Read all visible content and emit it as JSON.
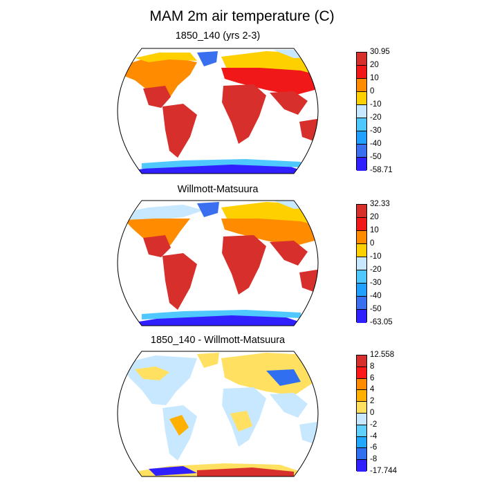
{
  "title": "MAM 2m air temperature (C)",
  "panels": [
    {
      "title": "1850_140 (yrs 2-3)",
      "colorbar": {
        "labels": [
          "30.95",
          "20",
          "10",
          "0",
          "-10",
          "-20",
          "-30",
          "-40",
          "-50",
          "-58.71"
        ],
        "colors": [
          "#d7302c",
          "#f01818",
          "#ff8c00",
          "#ffd000",
          "#c8e8ff",
          "#4fc8ff",
          "#20a0ff",
          "#3a70f0",
          "#3020ff"
        ]
      }
    },
    {
      "title": "Willmott-Matsuura",
      "colorbar": {
        "labels": [
          "32.33",
          "20",
          "10",
          "0",
          "-10",
          "-20",
          "-30",
          "-40",
          "-50",
          "-63.05"
        ],
        "colors": [
          "#d7302c",
          "#f01818",
          "#ff8c00",
          "#ffd000",
          "#c8e8ff",
          "#4fc8ff",
          "#20a0ff",
          "#3a70f0",
          "#3020ff"
        ]
      }
    },
    {
      "title": "1850_140 - Willmott-Matsuura",
      "colorbar": {
        "labels": [
          "12.558",
          "8",
          "6",
          "4",
          "2",
          "0",
          "-2",
          "-4",
          "-6",
          "-8",
          "-17.744"
        ],
        "colors": [
          "#d7302c",
          "#ff1818",
          "#ff8c00",
          "#ffb000",
          "#ffe060",
          "#c8e8ff",
          "#60d0ff",
          "#20a8ff",
          "#3070f0",
          "#3020ff"
        ]
      }
    }
  ]
}
